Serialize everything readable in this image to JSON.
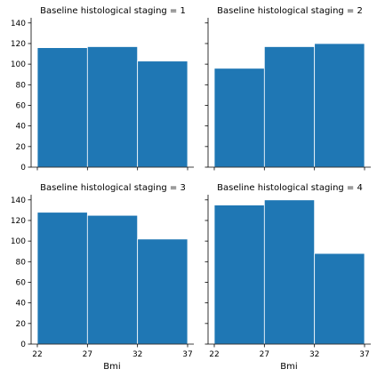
{
  "chart_data": {
    "type": "bar",
    "layout": "facet-grid-2x2",
    "xlabel": "Bmi",
    "x_ticks": [
      22,
      27,
      32,
      37
    ],
    "xlim": [
      22,
      37
    ],
    "y_ticks": [
      0,
      20,
      40,
      60,
      80,
      100,
      120,
      140
    ],
    "ylim": [
      0,
      145
    ],
    "bin_edges": [
      22,
      27,
      32,
      37
    ],
    "bar_color": "#1f77b4",
    "panels": [
      {
        "title": "Baseline histological staging = 1",
        "values": [
          116,
          117,
          103
        ]
      },
      {
        "title": "Baseline histological staging = 2",
        "values": [
          96,
          117,
          120
        ]
      },
      {
        "title": "Baseline histological staging = 3",
        "values": [
          128,
          125,
          102
        ]
      },
      {
        "title": "Baseline histological staging = 4",
        "values": [
          135,
          140,
          88
        ]
      }
    ]
  }
}
